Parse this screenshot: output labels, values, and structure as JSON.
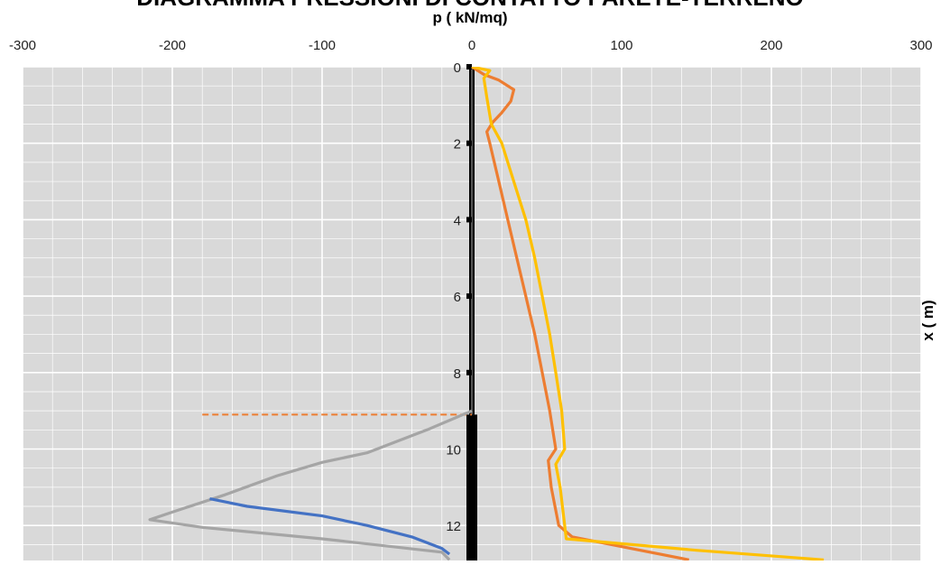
{
  "chart_data": {
    "type": "line",
    "title": "DIAGRAMMA PRESSIONI DI CONTATTO PARETE-TERRENO",
    "xlabel": "p ( kN/mq)",
    "ylabel": "x ( m)",
    "xlim": [
      -300,
      300
    ],
    "ylim": [
      0,
      12.9
    ],
    "y_inverted": true,
    "x_ticks": [
      "-300",
      "-200",
      "-100",
      "0",
      "100",
      "200",
      "300"
    ],
    "y_ticks": [
      "0",
      "2",
      "4",
      "6",
      "8",
      "10",
      "12"
    ],
    "grid": true,
    "colors": {
      "plot_bg": "#d9d9d9",
      "grid_major": "#ffffff",
      "grid_minor": "#ffffff",
      "wall": "#000000",
      "excavation_line": "#ed7d31"
    },
    "series": [
      {
        "color": "#ed7d31",
        "points": [
          [
            0,
            0
          ],
          [
            8,
            0.2
          ],
          [
            18,
            0.35
          ],
          [
            28,
            0.6
          ],
          [
            26,
            0.9
          ],
          [
            20,
            1.2
          ],
          [
            14,
            1.45
          ],
          [
            10,
            1.7
          ],
          [
            12,
            2.0
          ],
          [
            18,
            3.0
          ],
          [
            24,
            4.0
          ],
          [
            30,
            5.0
          ],
          [
            36,
            6.0
          ],
          [
            42,
            7.0
          ],
          [
            47,
            8.0
          ],
          [
            52,
            9.0
          ],
          [
            56,
            10.0
          ],
          [
            51,
            10.3
          ],
          [
            53,
            11.0
          ],
          [
            58,
            12.0
          ],
          [
            67,
            12.3
          ],
          [
            145,
            12.9
          ]
        ]
      },
      {
        "color": "#ffc000",
        "points": [
          [
            0,
            0
          ],
          [
            12,
            0.1
          ],
          [
            8,
            0.3
          ],
          [
            10,
            0.8
          ],
          [
            13,
            1.5
          ],
          [
            20,
            2.0
          ],
          [
            28,
            3.0
          ],
          [
            36,
            4.0
          ],
          [
            42,
            5.0
          ],
          [
            47,
            6.0
          ],
          [
            52,
            7.0
          ],
          [
            56,
            8.0
          ],
          [
            60,
            9.0
          ],
          [
            62,
            10.0
          ],
          [
            56,
            10.4
          ],
          [
            59,
            11.0
          ],
          [
            62,
            12.0
          ],
          [
            63,
            12.35
          ],
          [
            150,
            12.65
          ],
          [
            235,
            12.9
          ]
        ]
      },
      {
        "color": "#a5a5a5",
        "points": [
          [
            0,
            9.0
          ],
          [
            -30,
            9.5
          ],
          [
            -70,
            10.1
          ],
          [
            -100,
            10.35
          ],
          [
            -130,
            10.7
          ],
          [
            -165,
            11.2
          ],
          [
            -200,
            11.65
          ],
          [
            -215,
            11.85
          ],
          [
            -180,
            12.05
          ],
          [
            -100,
            12.35
          ],
          [
            -20,
            12.7
          ],
          [
            -15,
            12.9
          ]
        ]
      },
      {
        "color": "#4472c4",
        "points": [
          [
            -175,
            11.3
          ],
          [
            -150,
            11.5
          ],
          [
            -100,
            11.75
          ],
          [
            -70,
            12.0
          ],
          [
            -40,
            12.3
          ],
          [
            -20,
            12.6
          ],
          [
            -15,
            12.75
          ]
        ]
      }
    ],
    "excavation_level": {
      "x_from": -180,
      "x_to": 0,
      "y": 9.1
    }
  }
}
